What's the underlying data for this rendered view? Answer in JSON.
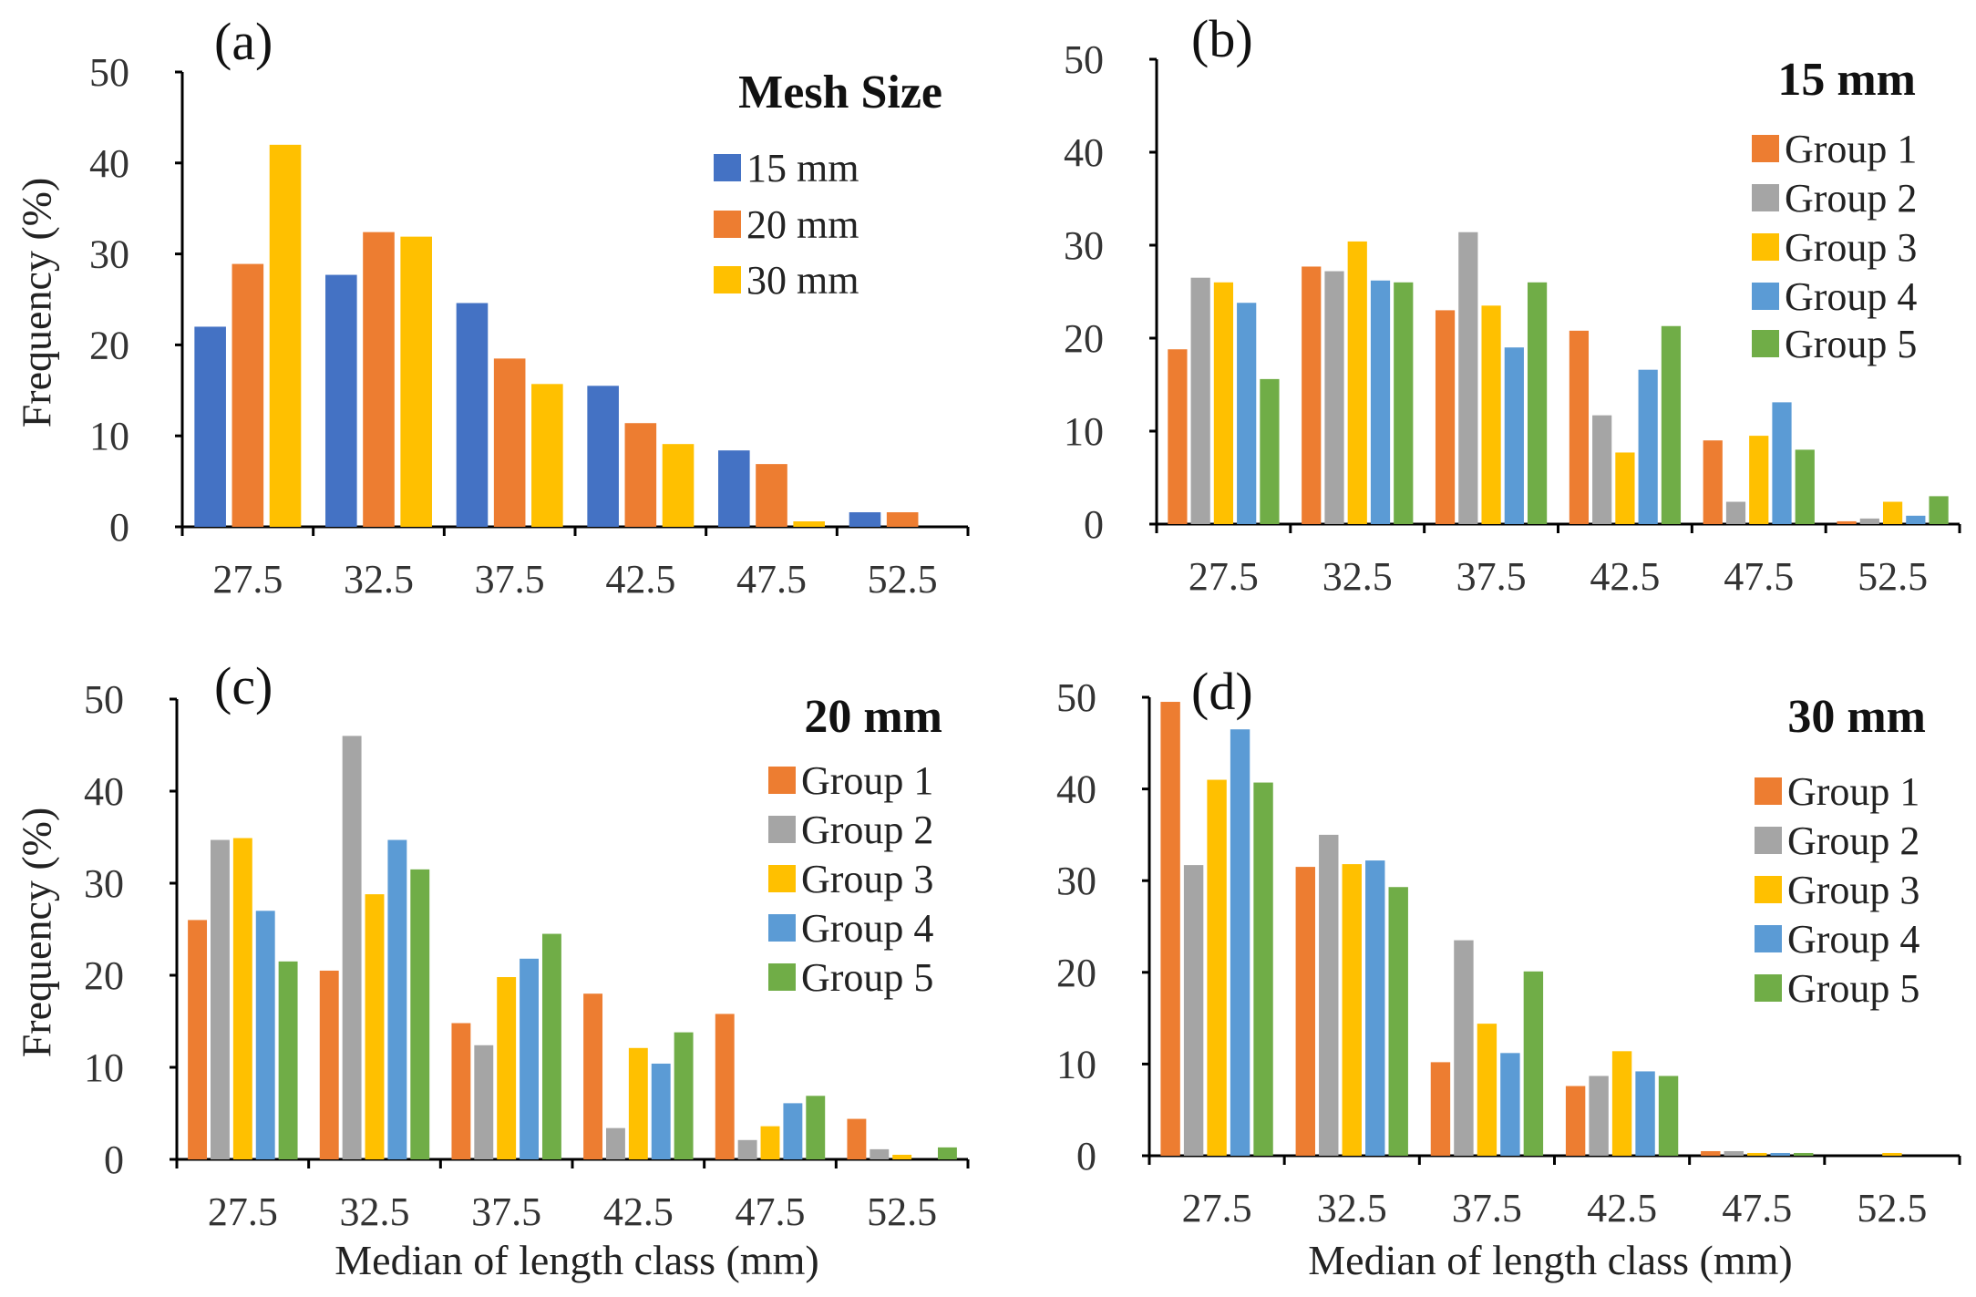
{
  "chart_data": [
    {
      "type": "bar",
      "panel": "(a)",
      "title": "Mesh Size",
      "ylabel": "Frequency (%)",
      "xlabel": "",
      "ylim": [
        0,
        50
      ],
      "yticks": [
        0,
        10,
        20,
        30,
        40,
        50
      ],
      "categories": [
        "27.5",
        "32.5",
        "37.5",
        "42.5",
        "47.5",
        "52.5"
      ],
      "legend_position": "top-right",
      "series": [
        {
          "name": "15 mm",
          "color": "#4472C4",
          "values": [
            22.0,
            27.7,
            24.6,
            15.5,
            8.4,
            1.6
          ]
        },
        {
          "name": "20 mm",
          "color": "#ED7D31",
          "values": [
            28.9,
            32.4,
            18.5,
            11.4,
            6.9,
            1.6
          ]
        },
        {
          "name": "30 mm",
          "color": "#FFC000",
          "values": [
            42.0,
            31.9,
            15.7,
            9.1,
            0.6,
            0
          ]
        }
      ]
    },
    {
      "type": "bar",
      "panel": "(b)",
      "title": "15 mm",
      "ylabel": "",
      "xlabel": "",
      "ylim": [
        0,
        50
      ],
      "yticks": [
        0,
        10,
        20,
        30,
        40,
        50
      ],
      "categories": [
        "27.5",
        "32.5",
        "37.5",
        "42.5",
        "47.5",
        "52.5"
      ],
      "legend_position": "top-right",
      "series": [
        {
          "name": "Group 1",
          "color": "#ED7D31",
          "values": [
            18.8,
            27.7,
            23.0,
            20.8,
            9.0,
            0.3
          ]
        },
        {
          "name": "Group 2",
          "color": "#A5A5A5",
          "values": [
            26.5,
            27.2,
            31.4,
            11.7,
            2.4,
            0.6
          ]
        },
        {
          "name": "Group 3",
          "color": "#FFC000",
          "values": [
            26.0,
            30.4,
            23.5,
            7.7,
            9.5,
            2.4
          ]
        },
        {
          "name": "Group 4",
          "color": "#5B9BD5",
          "values": [
            23.8,
            26.2,
            19.0,
            16.6,
            13.1,
            0.9
          ]
        },
        {
          "name": "Group 5",
          "color": "#70AD47",
          "values": [
            15.6,
            26.0,
            26.0,
            21.3,
            8.0,
            3.0
          ]
        }
      ]
    },
    {
      "type": "bar",
      "panel": "(c)",
      "title": "20 mm",
      "ylabel": "Frequency (%)",
      "xlabel": "Median of length class (mm)",
      "ylim": [
        0,
        50
      ],
      "yticks": [
        0,
        10,
        20,
        30,
        40,
        50
      ],
      "categories": [
        "27.5",
        "32.5",
        "37.5",
        "42.5",
        "47.5",
        "52.5"
      ],
      "legend_position": "top-right",
      "series": [
        {
          "name": "Group 1",
          "color": "#ED7D31",
          "values": [
            26.0,
            20.5,
            14.8,
            18.0,
            15.8,
            4.4
          ]
        },
        {
          "name": "Group 2",
          "color": "#A5A5A5",
          "values": [
            34.7,
            46.0,
            12.4,
            3.4,
            2.1,
            1.1
          ]
        },
        {
          "name": "Group 3",
          "color": "#FFC000",
          "values": [
            34.9,
            28.8,
            19.8,
            12.1,
            3.6,
            0.5
          ]
        },
        {
          "name": "Group 4",
          "color": "#5B9BD5",
          "values": [
            27.0,
            34.7,
            21.8,
            10.4,
            6.1,
            0
          ]
        },
        {
          "name": "Group 5",
          "color": "#70AD47",
          "values": [
            21.5,
            31.5,
            24.5,
            13.8,
            6.9,
            1.3
          ]
        }
      ]
    },
    {
      "type": "bar",
      "panel": "(d)",
      "title": "30 mm",
      "ylabel": "",
      "xlabel": "Median of length class (mm)",
      "ylim": [
        0,
        50
      ],
      "yticks": [
        0,
        10,
        20,
        30,
        40,
        50
      ],
      "categories": [
        "27.5",
        "32.5",
        "37.5",
        "42.5",
        "47.5",
        "52.5"
      ],
      "legend_position": "top-right",
      "series": [
        {
          "name": "Group 1",
          "color": "#ED7D31",
          "values": [
            49.5,
            31.5,
            10.2,
            7.6,
            0.5,
            0
          ]
        },
        {
          "name": "Group 2",
          "color": "#A5A5A5",
          "values": [
            31.7,
            35.0,
            23.5,
            8.7,
            0.5,
            0
          ]
        },
        {
          "name": "Group 3",
          "color": "#FFC000",
          "values": [
            41.0,
            31.8,
            14.4,
            11.4,
            0.3,
            0.3
          ]
        },
        {
          "name": "Group 4",
          "color": "#5B9BD5",
          "values": [
            46.5,
            32.2,
            11.2,
            9.2,
            0.3,
            0
          ]
        },
        {
          "name": "Group 5",
          "color": "#70AD47",
          "values": [
            40.7,
            29.3,
            20.1,
            8.7,
            0.3,
            0
          ]
        }
      ]
    }
  ]
}
